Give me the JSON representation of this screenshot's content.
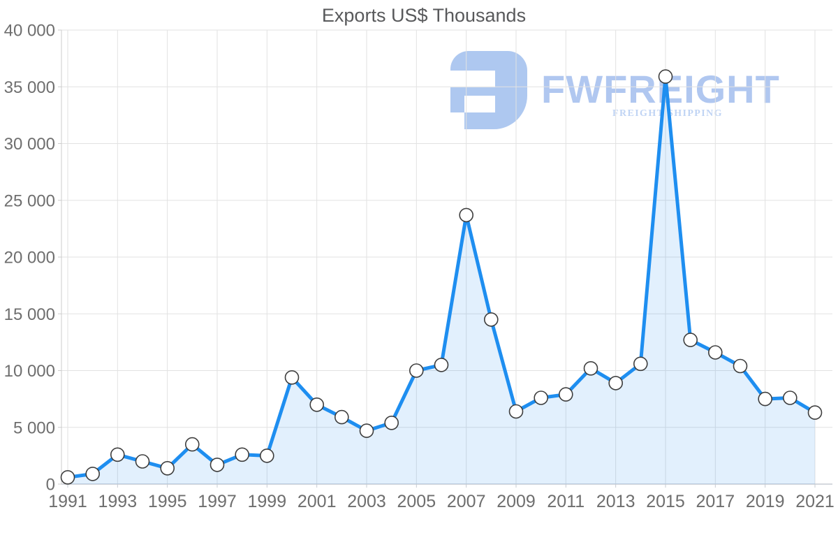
{
  "chart_data": {
    "type": "area",
    "title": "Exports US$ Thousands",
    "x": [
      1991,
      1992,
      1993,
      1994,
      1995,
      1996,
      1997,
      1998,
      1999,
      2000,
      2001,
      2002,
      2003,
      2004,
      2005,
      2006,
      2007,
      2008,
      2009,
      2010,
      2011,
      2012,
      2013,
      2014,
      2015,
      2016,
      2017,
      2018,
      2019,
      2020,
      2021
    ],
    "series": [
      {
        "name": "Exports US$ Thousands",
        "values": [
          600,
          900,
          2600,
          2000,
          1400,
          3500,
          1700,
          2600,
          2500,
          9400,
          7000,
          5900,
          4700,
          5400,
          10000,
          10500,
          23700,
          14500,
          6400,
          7600,
          7900,
          10200,
          8900,
          10600,
          35900,
          12700,
          11600,
          10400,
          7500,
          7600,
          6300
        ]
      }
    ],
    "ylim": [
      0,
      40000
    ],
    "y_ticks": [
      0,
      5000,
      10000,
      15000,
      20000,
      25000,
      30000,
      35000,
      40000
    ],
    "y_tick_labels": [
      "0",
      "5 000",
      "10 000",
      "15 000",
      "20 000",
      "25 000",
      "30 000",
      "35 000",
      "40 000"
    ],
    "x_tick_labels": [
      "1991",
      "1993",
      "1995",
      "1997",
      "1999",
      "2001",
      "2003",
      "2005",
      "2007",
      "2009",
      "2011",
      "2013",
      "2015",
      "2017",
      "2019",
      "2021"
    ],
    "grid": true,
    "legend": "none",
    "marker": "circle"
  },
  "watermark": {
    "brand": "FWFREIGHT",
    "tagline": "FREIGHT SHIPPING"
  },
  "style": {
    "line_color": "#1e8ef0",
    "area_fill": "rgba(30,142,240,0.13)",
    "grid_color": "#e2e2e2",
    "x_axis_color": "#c7ccd3",
    "y_axis_color": "#cccccc",
    "marker_fill": "#ffffff",
    "marker_stroke": "#3d3d3d",
    "label_color": "#6e6e6e",
    "title_color": "#58595b",
    "logo_color": "#aec8f0",
    "logo_text_color": "#b0c7f0",
    "logo_tagline_color": "#c0d4f4"
  }
}
